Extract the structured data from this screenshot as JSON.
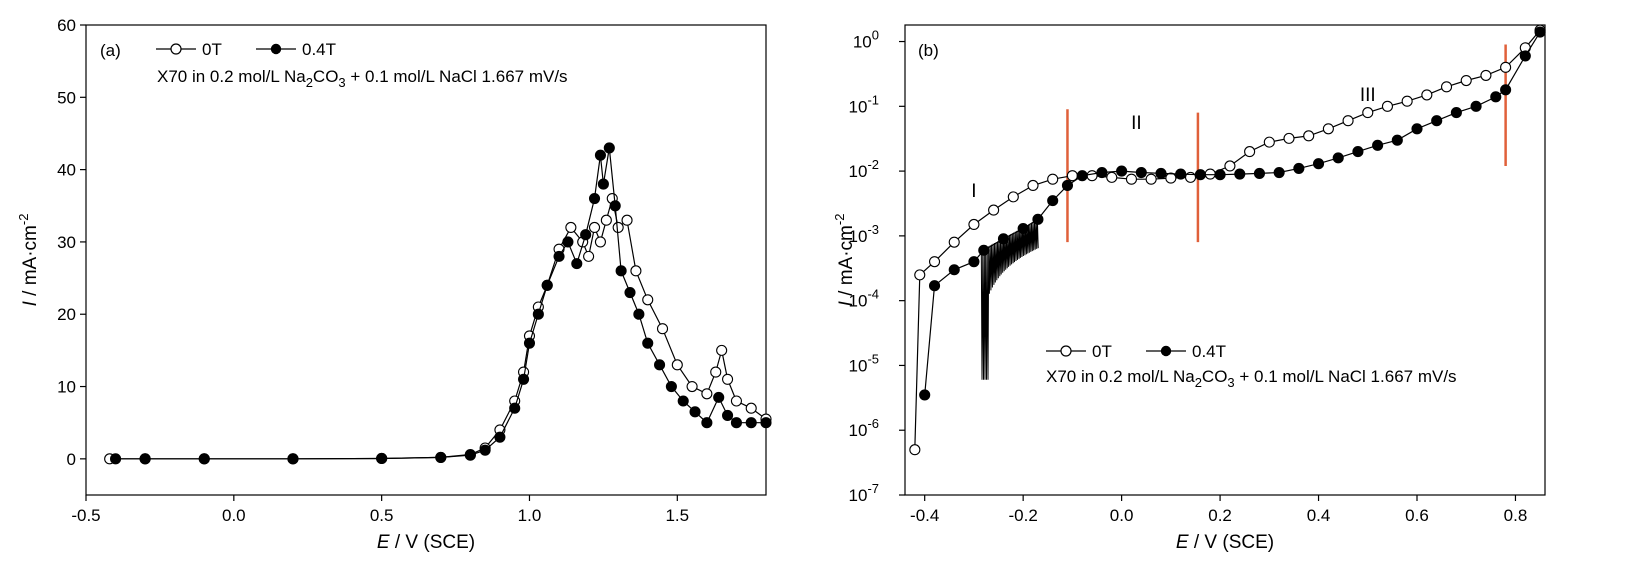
{
  "chart_data": [
    {
      "type": "line",
      "panel_label": "(a)",
      "annotation": "X70 in 0.2 mol/L Na2CO3 + 0.1 mol/L NaCl  1.667 mV/s",
      "annotation_parts": [
        "X70 in 0.2 mol/L Na",
        "2",
        "CO",
        "3",
        " + 0.1 mol/L NaCl  1.667 mV/s"
      ],
      "xlabel": {
        "var": "E",
        "rest": " / V (SCE)"
      },
      "ylabel": {
        "var": "I",
        "rest": " / mA·cm",
        "sup": "-2"
      },
      "xlim": [
        -0.5,
        1.8
      ],
      "ylim": [
        -5,
        60
      ],
      "x_ticks": [
        "-0.5",
        "0.0",
        "0.5",
        "1.0",
        "1.5"
      ],
      "x_tick_values": [
        -0.5,
        0.0,
        0.5,
        1.0,
        1.5
      ],
      "y_ticks": [
        "0",
        "10",
        "20",
        "30",
        "40",
        "50",
        "60"
      ],
      "y_tick_values": [
        0,
        10,
        20,
        30,
        40,
        50,
        60
      ],
      "legend_placement": "top-left",
      "series": [
        {
          "name": "0T",
          "marker": "open-circle",
          "points": [
            [
              -0.42,
              0
            ],
            [
              -0.3,
              0
            ],
            [
              -0.1,
              0
            ],
            [
              0.2,
              0
            ],
            [
              0.5,
              0.05
            ],
            [
              0.7,
              0.2
            ],
            [
              0.8,
              0.6
            ],
            [
              0.85,
              1.5
            ],
            [
              0.9,
              4
            ],
            [
              0.95,
              8
            ],
            [
              0.98,
              12
            ],
            [
              1.0,
              17
            ],
            [
              1.03,
              21
            ],
            [
              1.06,
              24
            ],
            [
              1.1,
              29
            ],
            [
              1.14,
              32
            ],
            [
              1.18,
              30
            ],
            [
              1.2,
              28
            ],
            [
              1.22,
              32
            ],
            [
              1.24,
              30
            ],
            [
              1.26,
              33
            ],
            [
              1.28,
              36
            ],
            [
              1.3,
              32
            ],
            [
              1.33,
              33
            ],
            [
              1.36,
              26
            ],
            [
              1.4,
              22
            ],
            [
              1.45,
              18
            ],
            [
              1.5,
              13
            ],
            [
              1.55,
              10
            ],
            [
              1.6,
              9
            ],
            [
              1.63,
              12
            ],
            [
              1.65,
              15
            ],
            [
              1.67,
              11
            ],
            [
              1.7,
              8
            ],
            [
              1.75,
              7
            ],
            [
              1.8,
              5.5
            ]
          ]
        },
        {
          "name": "0.4T",
          "marker": "filled-circle",
          "points": [
            [
              -0.4,
              0
            ],
            [
              -0.3,
              0
            ],
            [
              -0.1,
              0
            ],
            [
              0.2,
              0
            ],
            [
              0.5,
              0.05
            ],
            [
              0.7,
              0.2
            ],
            [
              0.8,
              0.5
            ],
            [
              0.85,
              1.2
            ],
            [
              0.9,
              3
            ],
            [
              0.95,
              7
            ],
            [
              0.98,
              11
            ],
            [
              1.0,
              16
            ],
            [
              1.03,
              20
            ],
            [
              1.06,
              24
            ],
            [
              1.1,
              28
            ],
            [
              1.13,
              30
            ],
            [
              1.16,
              27
            ],
            [
              1.19,
              31
            ],
            [
              1.22,
              36
            ],
            [
              1.24,
              42
            ],
            [
              1.25,
              38
            ],
            [
              1.27,
              43
            ],
            [
              1.29,
              35
            ],
            [
              1.31,
              26
            ],
            [
              1.34,
              23
            ],
            [
              1.37,
              20
            ],
            [
              1.4,
              16
            ],
            [
              1.44,
              13
            ],
            [
              1.48,
              10
            ],
            [
              1.52,
              8
            ],
            [
              1.56,
              6.5
            ],
            [
              1.6,
              5
            ],
            [
              1.64,
              8.5
            ],
            [
              1.67,
              6
            ],
            [
              1.7,
              5
            ],
            [
              1.75,
              5
            ],
            [
              1.8,
              5
            ]
          ]
        }
      ]
    },
    {
      "type": "line",
      "panel_label": "(b)",
      "annotation": "X70 in 0.2 mol/L Na2CO3 + 0.1 mol/L NaCl  1.667 mV/s",
      "annotation_parts": [
        "X70 in 0.2 mol/L Na",
        "2",
        "CO",
        "3",
        " + 0.1 mol/L NaCl  1.667 mV/s"
      ],
      "xlabel": {
        "var": "E",
        "rest": " / V (SCE)"
      },
      "ylabel": {
        "var": "I",
        "rest": " / mA·cm",
        "sup": "-2"
      },
      "xlim": [
        -0.44,
        0.86
      ],
      "ylim": [
        1e-07,
        1.8
      ],
      "y_scale": "log",
      "x_ticks": [
        "-0.4",
        "-0.2",
        "0.0",
        "0.2",
        "0.4",
        "0.6",
        "0.8"
      ],
      "x_tick_values": [
        -0.4,
        -0.2,
        0.0,
        0.2,
        0.4,
        0.6,
        0.8
      ],
      "y_ticks": [
        {
          "base": "10",
          "exp": "0"
        },
        {
          "base": "10",
          "exp": "-1"
        },
        {
          "base": "10",
          "exp": "-2"
        },
        {
          "base": "10",
          "exp": "-3"
        },
        {
          "base": "10",
          "exp": "-4"
        },
        {
          "base": "10",
          "exp": "-5"
        },
        {
          "base": "10",
          "exp": "-6"
        },
        {
          "base": "10",
          "exp": "-7"
        }
      ],
      "y_tick_values": [
        1,
        0.1,
        0.01,
        0.001,
        0.0001,
        1e-05,
        1e-06,
        1e-07
      ],
      "region_labels": [
        {
          "text": "I",
          "x": -0.3,
          "y": 0.004
        },
        {
          "text": "II",
          "x": 0.03,
          "y": 0.045
        },
        {
          "text": "III",
          "x": 0.5,
          "y": 0.12
        }
      ],
      "boundary_lines": [
        {
          "x": -0.11,
          "y": [
            0.0008,
            0.09
          ],
          "color": "#e0603a"
        },
        {
          "x": 0.155,
          "y": [
            0.0008,
            0.08
          ],
          "color": "#e0603a"
        },
        {
          "x": 0.78,
          "y": [
            0.012,
            0.9
          ],
          "color": "#e0603a"
        }
      ],
      "legend_placement": "center",
      "series": [
        {
          "name": "0T",
          "marker": "open-circle",
          "points": [
            [
              -0.42,
              5e-07
            ],
            [
              -0.41,
              0.00025
            ],
            [
              -0.38,
              0.0004
            ],
            [
              -0.34,
              0.0008
            ],
            [
              -0.3,
              0.0015
            ],
            [
              -0.26,
              0.0025
            ],
            [
              -0.22,
              0.004
            ],
            [
              -0.18,
              0.006
            ],
            [
              -0.14,
              0.0075
            ],
            [
              -0.1,
              0.0085
            ],
            [
              -0.06,
              0.0085
            ],
            [
              -0.02,
              0.008
            ],
            [
              0.02,
              0.0075
            ],
            [
              0.06,
              0.0075
            ],
            [
              0.1,
              0.0078
            ],
            [
              0.14,
              0.008
            ],
            [
              0.18,
              0.009
            ],
            [
              0.22,
              0.012
            ],
            [
              0.26,
              0.02
            ],
            [
              0.3,
              0.028
            ],
            [
              0.34,
              0.032
            ],
            [
              0.38,
              0.035
            ],
            [
              0.42,
              0.045
            ],
            [
              0.46,
              0.06
            ],
            [
              0.5,
              0.08
            ],
            [
              0.54,
              0.1
            ],
            [
              0.58,
              0.12
            ],
            [
              0.62,
              0.15
            ],
            [
              0.66,
              0.2
            ],
            [
              0.7,
              0.25
            ],
            [
              0.74,
              0.3
            ],
            [
              0.78,
              0.4
            ],
            [
              0.82,
              0.8
            ],
            [
              0.85,
              1.5
            ]
          ]
        },
        {
          "name": "0.4T",
          "marker": "filled-circle",
          "points": [
            [
              -0.4,
              3.5e-06
            ],
            [
              -0.38,
              0.00017
            ],
            [
              -0.34,
              0.0003
            ],
            [
              -0.3,
              0.0004
            ],
            [
              -0.28,
              0.0006
            ],
            [
              -0.24,
              0.0009
            ],
            [
              -0.2,
              0.0013
            ],
            [
              -0.17,
              0.0018
            ],
            [
              -0.14,
              0.0035
            ],
            [
              -0.11,
              0.006
            ],
            [
              -0.08,
              0.0085
            ],
            [
              -0.04,
              0.0095
            ],
            [
              0.0,
              0.01
            ],
            [
              0.04,
              0.0095
            ],
            [
              0.08,
              0.0092
            ],
            [
              0.12,
              0.009
            ],
            [
              0.16,
              0.0088
            ],
            [
              0.2,
              0.0088
            ],
            [
              0.24,
              0.009
            ],
            [
              0.28,
              0.0092
            ],
            [
              0.32,
              0.0095
            ],
            [
              0.36,
              0.011
            ],
            [
              0.4,
              0.013
            ],
            [
              0.44,
              0.016
            ],
            [
              0.48,
              0.02
            ],
            [
              0.52,
              0.025
            ],
            [
              0.56,
              0.03
            ],
            [
              0.6,
              0.045
            ],
            [
              0.64,
              0.06
            ],
            [
              0.68,
              0.08
            ],
            [
              0.72,
              0.1
            ],
            [
              0.76,
              0.14
            ],
            [
              0.78,
              0.18
            ],
            [
              0.82,
              0.6
            ],
            [
              0.85,
              1.4
            ]
          ]
        }
      ]
    }
  ]
}
